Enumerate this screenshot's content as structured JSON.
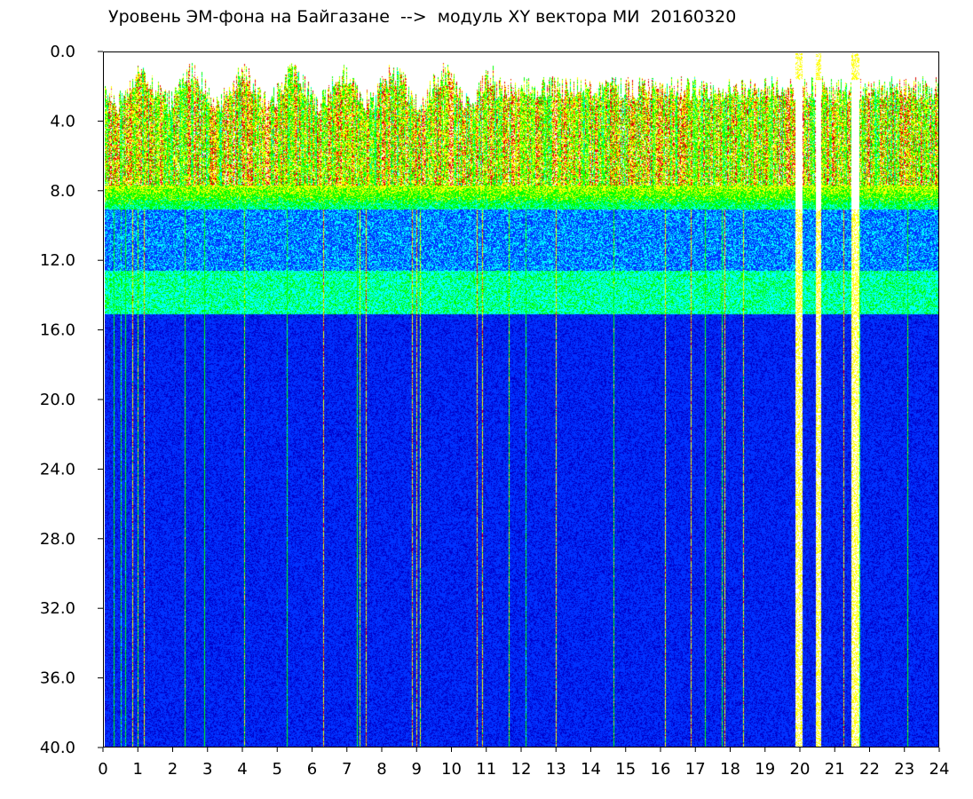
{
  "title": "Уровень ЭМ-фона на Байгазане  -->  модуль XY вектора МИ  20160320",
  "chart_data": {
    "type": "heatmap",
    "title": "Уровень ЭМ-фона на Байгазане  -->  модуль XY вектора МИ  20160320",
    "xlabel": "",
    "ylabel": "",
    "xlim": [
      0,
      24
    ],
    "ylim": [
      0.0,
      40.0
    ],
    "y_axis_inverted": true,
    "x_ticks": [
      "0",
      "1",
      "2",
      "3",
      "4",
      "5",
      "6",
      "7",
      "8",
      "9",
      "10",
      "11",
      "12",
      "13",
      "14",
      "15",
      "16",
      "17",
      "18",
      "19",
      "20",
      "21",
      "22",
      "23",
      "24"
    ],
    "y_ticks": [
      "0.0",
      "4.0",
      "8.0",
      "12.0",
      "16.0",
      "20.0",
      "24.0",
      "28.0",
      "32.0",
      "36.0",
      "40.0"
    ],
    "colormap": [
      "#ffffff",
      "#e60000",
      "#ffff00",
      "#00ff00",
      "#00ffff",
      "#0033ff",
      "#0000c8"
    ],
    "bands": [
      {
        "y_range": [
          1.5,
          7.5
        ],
        "level": "high"
      },
      {
        "y_range": [
          7.5,
          9.0
        ],
        "level": "medium"
      },
      {
        "y_range": [
          12.5,
          15.0
        ],
        "level": "medium-low"
      },
      {
        "y_range": [
          15.0,
          40.0
        ],
        "level": "low"
      }
    ],
    "gaps": [
      {
        "x_range": [
          19.85,
          20.05
        ]
      },
      {
        "x_range": [
          20.45,
          20.6
        ]
      },
      {
        "x_range": [
          21.45,
          21.7
        ]
      }
    ],
    "grid": false
  }
}
